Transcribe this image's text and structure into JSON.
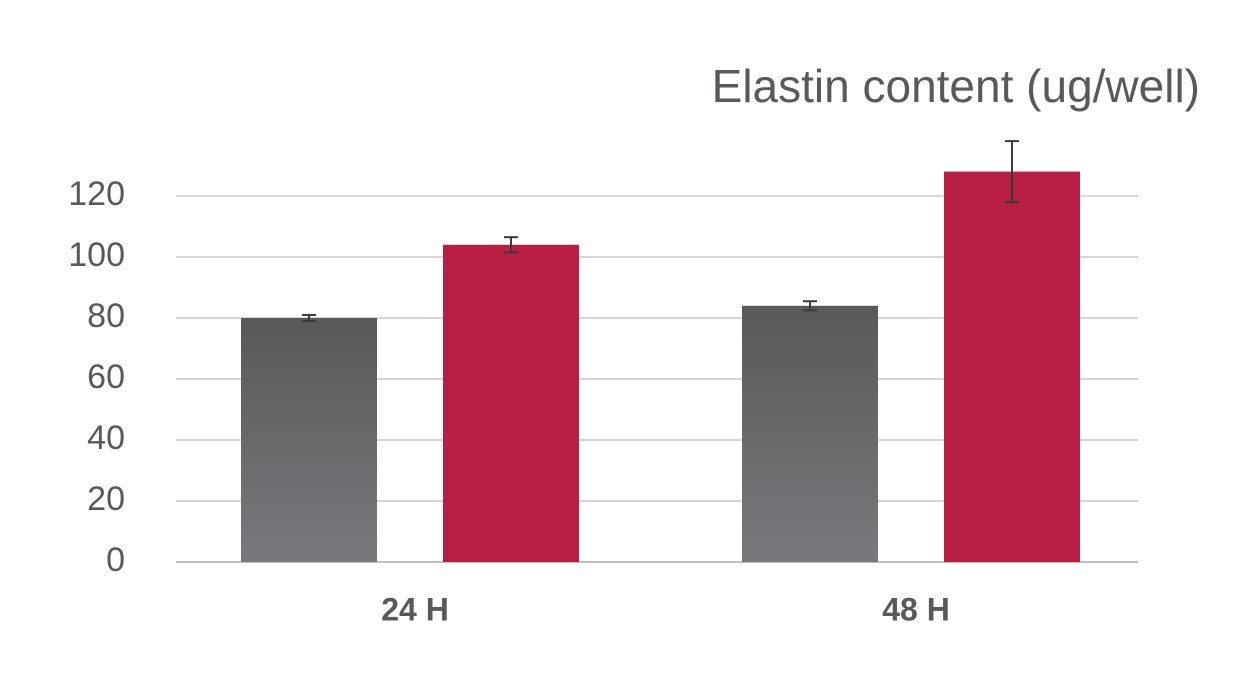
{
  "chart_data": {
    "type": "bar",
    "title": "Elastin content (ug/well)",
    "categories": [
      "24 H",
      "48 H"
    ],
    "series": [
      {
        "color": "#5f6063",
        "values": [
          80,
          84
        ],
        "errors": [
          1,
          1.5
        ]
      },
      {
        "color": "#b91f44",
        "values": [
          104,
          128
        ],
        "errors": [
          2.5,
          10
        ]
      }
    ],
    "ylim": [
      0,
      120
    ],
    "yticks": [
      0,
      20,
      40,
      60,
      80,
      100,
      120
    ],
    "grid": true
  }
}
